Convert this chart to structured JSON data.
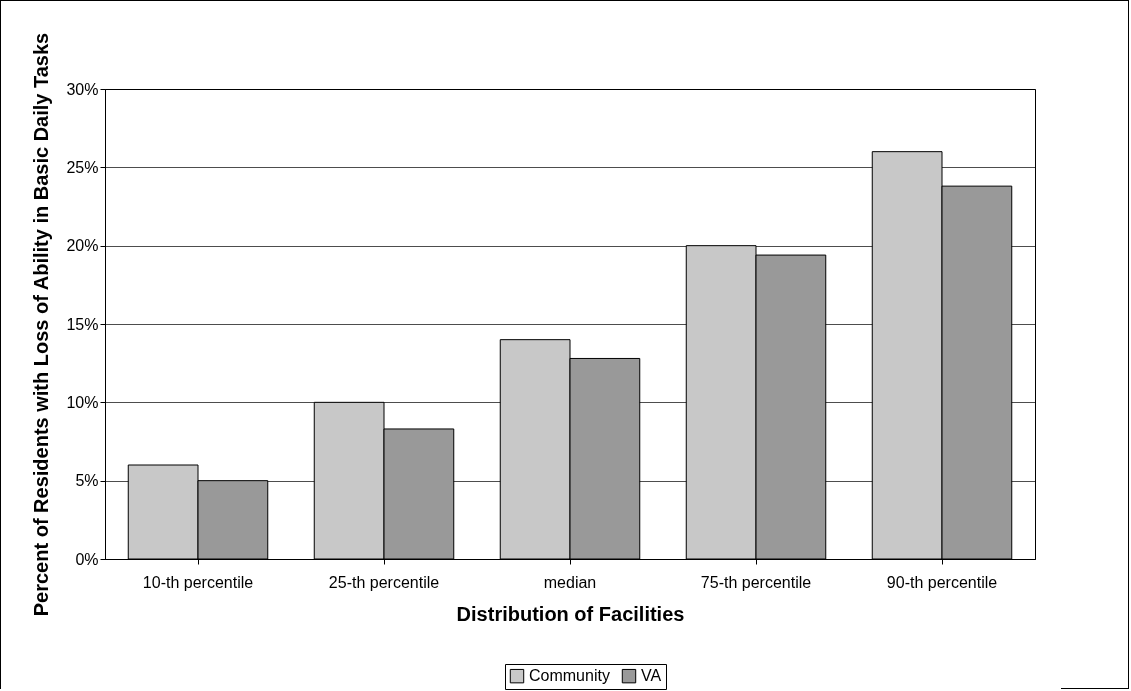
{
  "chart_data": {
    "type": "bar",
    "xlabel": "Distribution of Facilities",
    "ylabel": "Percent of Residents with Loss of Ability in Basic Daily Tasks",
    "categories": [
      "10-th percentile",
      "25-th percentile",
      "median",
      "75-th percentile",
      "90-th percentile"
    ],
    "series": [
      {
        "name": "Community",
        "color": "#c8c8c8",
        "values": [
          0.06,
          0.1,
          0.14,
          0.2,
          0.26
        ]
      },
      {
        "name": "VA",
        "color": "#999999",
        "values": [
          0.05,
          0.083,
          0.128,
          0.194,
          0.238
        ]
      }
    ],
    "ylim": [
      0,
      0.3
    ],
    "yticks": [
      {
        "value": 0,
        "label": "0%"
      },
      {
        "value": 0.05,
        "label": "5%"
      },
      {
        "value": 0.1,
        "label": "10%"
      },
      {
        "value": 0.15,
        "label": "15%"
      },
      {
        "value": 0.2,
        "label": "20%"
      },
      {
        "value": 0.25,
        "label": "25%"
      },
      {
        "value": 0.3,
        "label": "30%"
      }
    ],
    "grid": "y",
    "legend": "bottom"
  }
}
